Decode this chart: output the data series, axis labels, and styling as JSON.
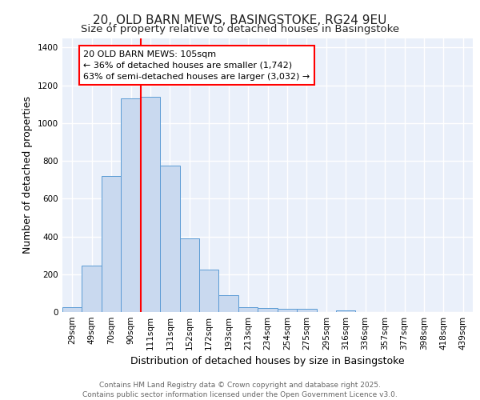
{
  "title_line1": "20, OLD BARN MEWS, BASINGSTOKE, RG24 9EU",
  "title_line2": "Size of property relative to detached houses in Basingstoke",
  "xlabel": "Distribution of detached houses by size in Basingstoke",
  "ylabel": "Number of detached properties",
  "bar_color": "#c9d9ef",
  "bar_edge_color": "#5b9bd5",
  "categories": [
    "29sqm",
    "49sqm",
    "70sqm",
    "90sqm",
    "111sqm",
    "131sqm",
    "152sqm",
    "172sqm",
    "193sqm",
    "213sqm",
    "234sqm",
    "254sqm",
    "275sqm",
    "295sqm",
    "316sqm",
    "336sqm",
    "357sqm",
    "377sqm",
    "398sqm",
    "418sqm",
    "439sqm"
  ],
  "values": [
    25,
    245,
    720,
    1130,
    1140,
    775,
    390,
    225,
    90,
    25,
    20,
    15,
    15,
    0,
    10,
    0,
    0,
    0,
    0,
    0,
    0
  ],
  "red_line_x": 3.72,
  "annotation_text": "20 OLD BARN MEWS: 105sqm\n← 36% of detached houses are smaller (1,742)\n63% of semi-detached houses are larger (3,032) →",
  "ylim": [
    0,
    1450
  ],
  "yticks": [
    0,
    200,
    400,
    600,
    800,
    1000,
    1200,
    1400
  ],
  "background_color": "#eaf0fa",
  "grid_color": "#ffffff",
  "footer_text": "Contains HM Land Registry data © Crown copyright and database right 2025.\nContains public sector information licensed under the Open Government Licence v3.0.",
  "title_fontsize": 11,
  "subtitle_fontsize": 9.5,
  "axis_label_fontsize": 9,
  "tick_fontsize": 7.5,
  "annotation_fontsize": 8,
  "footer_fontsize": 6.5
}
